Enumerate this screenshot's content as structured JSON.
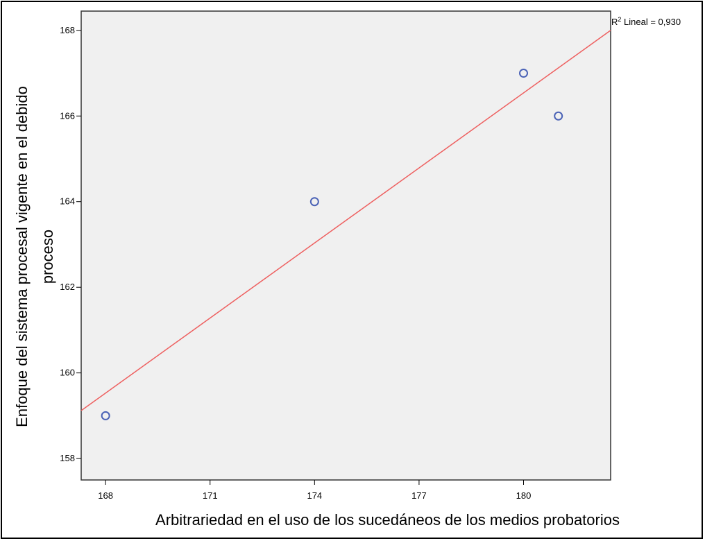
{
  "chart_data": {
    "type": "scatter",
    "title": "",
    "xlabel": "Arbitrariedad en el uso de los sucedáneos de los medios probatorios",
    "ylabel_line1": "Enfoque del sistema procesal vigente en el debido",
    "ylabel_line2": "proceso",
    "xlim": [
      167.3,
      182.5
    ],
    "ylim": [
      157.5,
      168.45
    ],
    "xticks": [
      168,
      171,
      174,
      177,
      180
    ],
    "yticks": [
      158,
      160,
      162,
      164,
      166,
      168
    ],
    "points": [
      {
        "x": 168,
        "y": 159
      },
      {
        "x": 174,
        "y": 164
      },
      {
        "x": 180,
        "y": 167
      },
      {
        "x": 181,
        "y": 166
      }
    ],
    "fit_line": {
      "label_prefix": "R",
      "label_sup": "2",
      "label_rest": " Lineal = 0,930",
      "x_range": [
        167.3,
        182.5
      ],
      "y_range": [
        159.12,
        168.0
      ]
    },
    "grid": false,
    "colors": {
      "plot_bg": "#f0f0f0",
      "marker": "#4a62b6",
      "fit_line": "#ee6060"
    }
  }
}
